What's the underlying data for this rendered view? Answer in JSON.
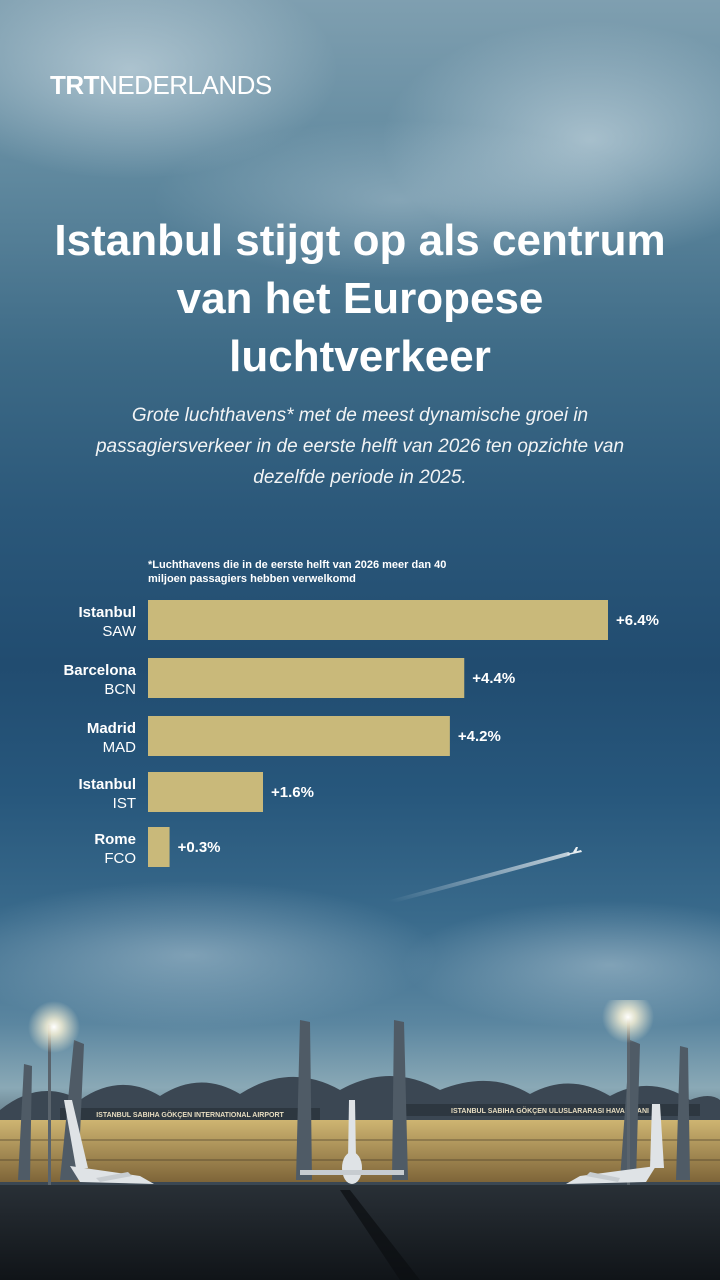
{
  "header": {
    "brand": "TRT",
    "brand_sub": "NEDERLANDS"
  },
  "title": "Istanbul stijgt op als centrum van het Europese luchtverkeer",
  "subtitle": "Grote luchthavens* met de meest dynamische groei in passagiersverkeer in de eerste helft van 2026 ten opzichte van dezelfde periode in 2025.",
  "footnote": "*Luchthavens die in de eerste helft van 2026 meer dan 40 miljoen passagiers hebben verwelkomd",
  "colors": {
    "bar": "#c9b97a",
    "text": "#ffffff"
  },
  "chart_data": {
    "type": "bar",
    "orientation": "horizontal",
    "categories": [
      "Istanbul SAW",
      "Barcelona BCN",
      "Madrid MAD",
      "Istanbul IST",
      "Rome FCO"
    ],
    "cities": [
      "Istanbul",
      "Barcelona",
      "Madrid",
      "Istanbul",
      "Rome"
    ],
    "codes": [
      "SAW",
      "BCN",
      "MAD",
      "IST",
      "FCO"
    ],
    "values": [
      6.4,
      4.4,
      4.2,
      1.6,
      0.3
    ],
    "labels": [
      "+6.4%",
      "+4.4%",
      "+4.2%",
      "+1.6%",
      "+0.3%"
    ],
    "unit": "%",
    "xlim": [
      0,
      6.4
    ],
    "grid": false,
    "legend": "none"
  },
  "scene": {
    "signs": [
      "ISTANBUL SABIHA GÖKÇEN INTERNATIONAL AIRPORT",
      "ISTANBUL SABIHA GÖKÇEN ULUSLARARASI HAVALİMANI"
    ]
  }
}
